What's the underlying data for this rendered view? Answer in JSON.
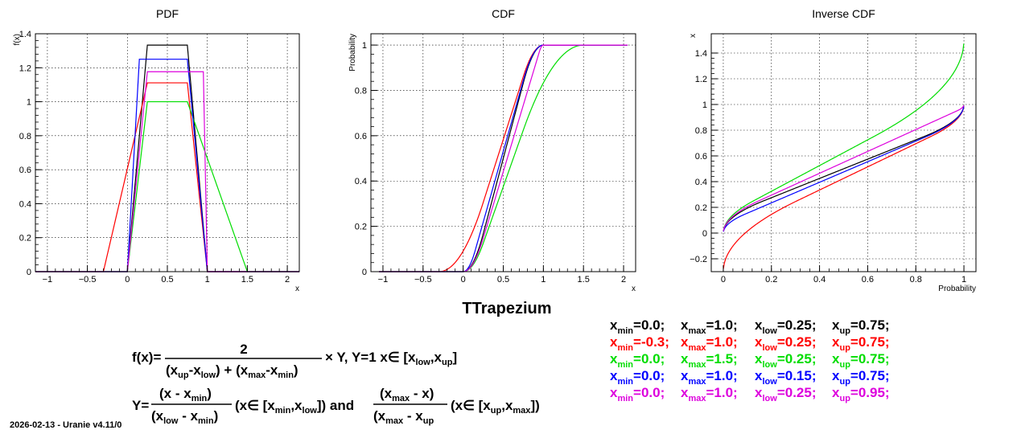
{
  "main_title": "TTrapezium",
  "stamp": "2026-02-13 - Uranie v4.11/0",
  "chart_data": [
    {
      "type": "line",
      "title": "PDF",
      "xlabel": "x",
      "ylabel": "f(x)",
      "xlim": [
        -1.15,
        2.15
      ],
      "ylim": [
        0,
        1.4
      ],
      "xticks": [
        -1,
        -0.5,
        0,
        0.5,
        1,
        1.5,
        2
      ],
      "yticks": [
        0,
        0.2,
        0.4,
        0.6,
        0.8,
        1,
        1.2,
        1.4
      ],
      "grid": true,
      "series": [
        {
          "color": "#000000",
          "xmin": 0.0,
          "xmax": 1.0,
          "xlow": 0.25,
          "xup": 0.75,
          "peak": 1.3333
        },
        {
          "color": "#ff0000",
          "xmin": -0.3,
          "xmax": 1.0,
          "xlow": 0.25,
          "xup": 0.75,
          "peak": 1.1111
        },
        {
          "color": "#00dd00",
          "xmin": 0.0,
          "xmax": 1.5,
          "xlow": 0.25,
          "xup": 0.75,
          "peak": 1.0
        },
        {
          "color": "#0000ff",
          "xmin": 0.0,
          "xmax": 1.0,
          "xlow": 0.15,
          "xup": 0.75,
          "peak": 1.25
        },
        {
          "color": "#dd00dd",
          "xmin": 0.0,
          "xmax": 1.0,
          "xlow": 0.25,
          "xup": 0.95,
          "peak": 1.1765
        }
      ]
    },
    {
      "type": "line",
      "title": "CDF",
      "xlabel": "x",
      "ylabel": "Probability",
      "xlim": [
        -1.15,
        2.15
      ],
      "ylim": [
        0,
        1.05
      ],
      "xticks": [
        -1,
        -0.5,
        0,
        0.5,
        1,
        1.5,
        2
      ],
      "yticks": [
        0,
        0.2,
        0.4,
        0.6,
        0.8,
        1
      ],
      "grid": true,
      "series_ref": "same five trapezium parameter sets as PDF"
    },
    {
      "type": "line",
      "title": "Inverse CDF",
      "xlabel": "Probability",
      "ylabel": "x",
      "xlim": [
        -0.05,
        1.05
      ],
      "ylim": [
        -0.3,
        1.55
      ],
      "xticks": [
        0,
        0.2,
        0.4,
        0.6,
        0.8,
        1
      ],
      "yticks": [
        -0.2,
        0,
        0.2,
        0.4,
        0.6,
        0.8,
        1,
        1.2,
        1.4
      ],
      "grid": true,
      "series_ref": "same five trapezium parameter sets as PDF"
    }
  ],
  "legend": [
    {
      "color": "#000000",
      "items": [
        [
          "min",
          "=0.0;"
        ],
        [
          "max",
          "=1.0;"
        ],
        [
          "low",
          "=0.25;"
        ],
        [
          "up",
          "=0.75;"
        ]
      ]
    },
    {
      "color": "#ff0000",
      "items": [
        [
          "min",
          "=-0.3;"
        ],
        [
          "max",
          "=1.0;"
        ],
        [
          "low",
          "=0.25;"
        ],
        [
          "up",
          "=0.75;"
        ]
      ]
    },
    {
      "color": "#00dd00",
      "items": [
        [
          "min",
          "=0.0;"
        ],
        [
          "max",
          "=1.5;"
        ],
        [
          "low",
          "=0.25;"
        ],
        [
          "up",
          "=0.75;"
        ]
      ]
    },
    {
      "color": "#0000ff",
      "items": [
        [
          "min",
          "=0.0;"
        ],
        [
          "max",
          "=1.0;"
        ],
        [
          "low",
          "=0.15;"
        ],
        [
          "up",
          "=0.75;"
        ]
      ]
    },
    {
      "color": "#dd00dd",
      "items": [
        [
          "min",
          "=0.0;"
        ],
        [
          "max",
          "=1.0;"
        ],
        [
          "low",
          "=0.25;"
        ],
        [
          "up",
          "=0.95;"
        ]
      ]
    }
  ],
  "formula": {
    "lhs1": "f(x)=",
    "num1": "2",
    "times": "× Y, Y=1  x∈ [x",
    "lhs2": "Y=",
    "and_text": "and",
    "sub": {
      "low": "low",
      "up": "up",
      "max": "max",
      "min": "min"
    }
  }
}
